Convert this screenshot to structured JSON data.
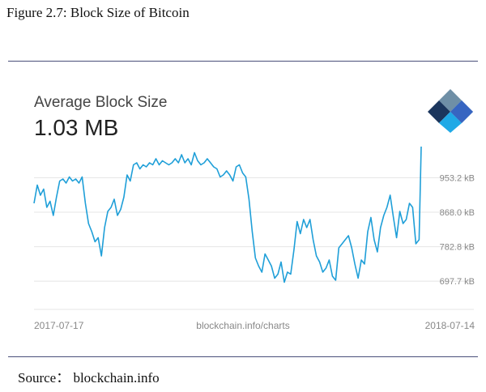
{
  "figure_title": "Figure 2.7: Block Size of Bitcoin",
  "source": "Source： blockchain.info",
  "chart_header": {
    "label": "Average Block Size",
    "value": "1.03 MB"
  },
  "logo_icon": "blockchain-cube-logo-icon",
  "colors": {
    "line": "#1f9fd8",
    "grid": "#e4e4e4",
    "tick_text": "#888888",
    "rule": "#4a4f7a",
    "logo_dark": "#1b365d",
    "logo_mid": "#2f6fb4",
    "logo_light": "#1fa9e6",
    "logo_grey": "#6f8fa6"
  },
  "chart_data": {
    "type": "line",
    "title": "Average Block Size",
    "x_start_label": "2017-07-17",
    "x_end_label": "2018-07-14",
    "center_label": "blockchain.info/charts",
    "yticks": [
      {
        "value": 953.2,
        "label": "953.2 kB"
      },
      {
        "value": 868.0,
        "label": "868.0 kB"
      },
      {
        "value": 782.8,
        "label": "782.8 kB"
      },
      {
        "value": 697.7,
        "label": "697.7 kB"
      }
    ],
    "ylim": [
      640,
      1040
    ],
    "xlim": [
      "2017-07-17",
      "2018-07-14"
    ],
    "grid": true,
    "series": [
      {
        "x": [
          "2017-07-17",
          "2017-07-20",
          "2017-07-23",
          "2017-07-26",
          "2017-07-29",
          "2017-08-01",
          "2017-08-04",
          "2017-08-07",
          "2017-08-10",
          "2017-08-13",
          "2017-08-16",
          "2017-08-19",
          "2017-08-22",
          "2017-08-25",
          "2017-08-28",
          "2017-08-31",
          "2017-09-03",
          "2017-09-06",
          "2017-09-09",
          "2017-09-12",
          "2017-09-15",
          "2017-09-18",
          "2017-09-21",
          "2017-09-24",
          "2017-09-27",
          "2017-09-30",
          "2017-10-03",
          "2017-10-06",
          "2017-10-09",
          "2017-10-12",
          "2017-10-15",
          "2017-10-18",
          "2017-10-21",
          "2017-10-24",
          "2017-10-27",
          "2017-10-30",
          "2017-11-02",
          "2017-11-05",
          "2017-11-08",
          "2017-11-11",
          "2017-11-14",
          "2017-11-17",
          "2017-11-20",
          "2017-11-23",
          "2017-11-26",
          "2017-11-29",
          "2017-12-02",
          "2017-12-05",
          "2017-12-08",
          "2017-12-11",
          "2017-12-14",
          "2017-12-17",
          "2017-12-20",
          "2017-12-23",
          "2017-12-26",
          "2017-12-29",
          "2018-01-01",
          "2018-01-04",
          "2018-01-07",
          "2018-01-10",
          "2018-01-13",
          "2018-01-16",
          "2018-01-19",
          "2018-01-22",
          "2018-01-25",
          "2018-01-28",
          "2018-01-31",
          "2018-02-03",
          "2018-02-06",
          "2018-02-09",
          "2018-02-12",
          "2018-02-15",
          "2018-02-18",
          "2018-02-21",
          "2018-02-24",
          "2018-02-27",
          "2018-03-02",
          "2018-03-05",
          "2018-03-08",
          "2018-03-11",
          "2018-03-14",
          "2018-03-17",
          "2018-03-20",
          "2018-03-23",
          "2018-03-26",
          "2018-03-29",
          "2018-04-01",
          "2018-04-04",
          "2018-04-07",
          "2018-04-10",
          "2018-04-13",
          "2018-04-16",
          "2018-04-19",
          "2018-04-22",
          "2018-04-25",
          "2018-04-28",
          "2018-05-01",
          "2018-05-04",
          "2018-05-07",
          "2018-05-10",
          "2018-05-13",
          "2018-05-16",
          "2018-05-19",
          "2018-05-22",
          "2018-05-25",
          "2018-05-28",
          "2018-05-31",
          "2018-06-03",
          "2018-06-06",
          "2018-06-09",
          "2018-06-12",
          "2018-06-15",
          "2018-06-18",
          "2018-06-21",
          "2018-06-24",
          "2018-06-27",
          "2018-06-30",
          "2018-07-03",
          "2018-07-06",
          "2018-07-09",
          "2018-07-12",
          "2018-07-14"
        ],
        "y": [
          890,
          935,
          910,
          925,
          880,
          895,
          860,
          905,
          945,
          950,
          940,
          955,
          945,
          950,
          940,
          955,
          890,
          840,
          820,
          795,
          805,
          760,
          830,
          870,
          880,
          900,
          860,
          875,
          905,
          960,
          945,
          985,
          990,
          975,
          985,
          980,
          990,
          985,
          1000,
          985,
          995,
          990,
          985,
          990,
          1000,
          990,
          1010,
          990,
          1000,
          985,
          1015,
          995,
          985,
          990,
          1000,
          990,
          980,
          975,
          955,
          960,
          970,
          960,
          945,
          980,
          985,
          965,
          955,
          900,
          820,
          755,
          735,
          720,
          765,
          750,
          735,
          705,
          715,
          745,
          695,
          720,
          715,
          775,
          845,
          815,
          850,
          830,
          850,
          800,
          760,
          745,
          720,
          730,
          750,
          710,
          700,
          780,
          790,
          800,
          810,
          780,
          740,
          705,
          750,
          740,
          820,
          855,
          800,
          770,
          830,
          860,
          880,
          910,
          855,
          805,
          870,
          840,
          850,
          890,
          880,
          790,
          800,
          1030
        ]
      }
    ]
  }
}
